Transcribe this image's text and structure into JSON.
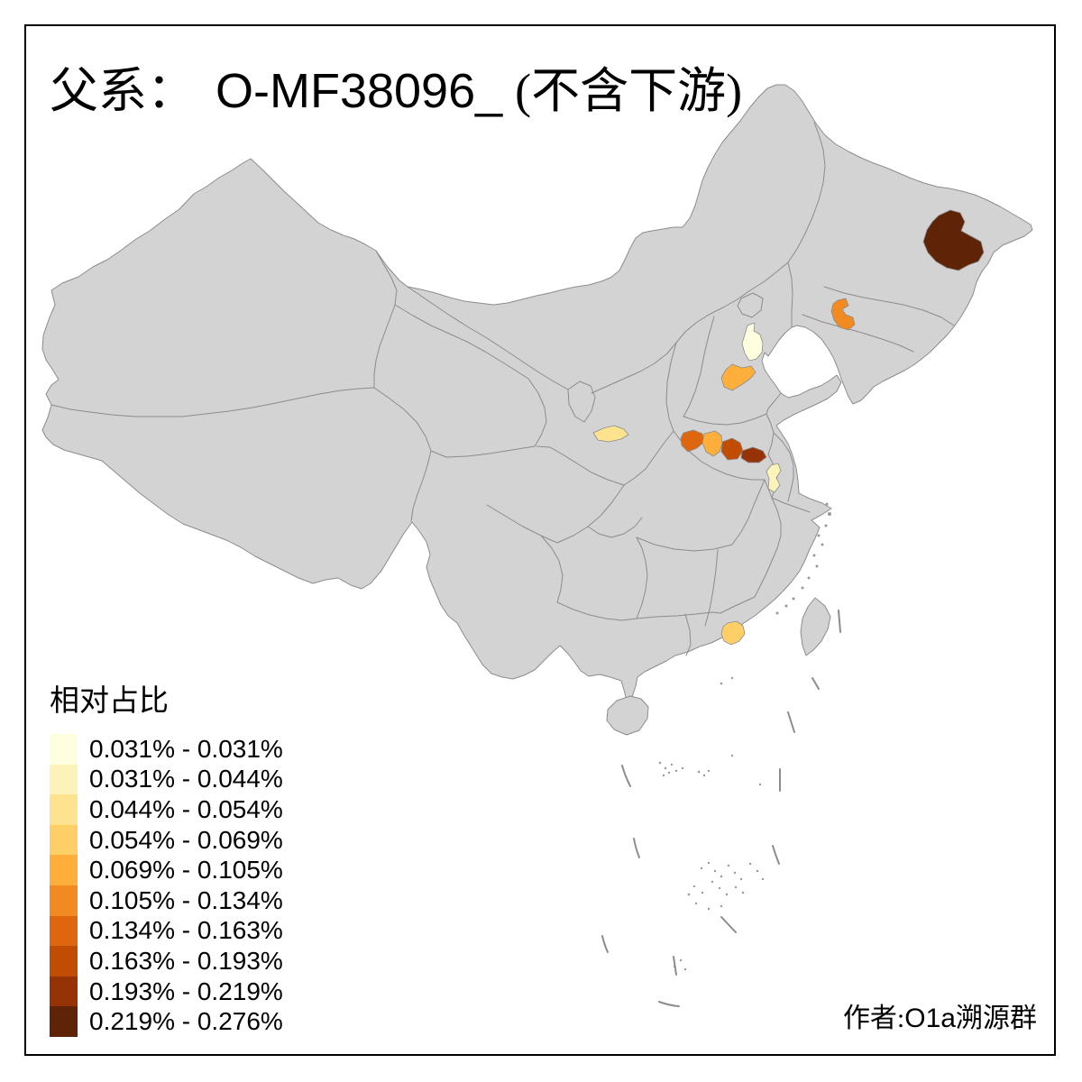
{
  "title": {
    "zh_prefix": "父系：",
    "code": "O-MF38096_",
    "zh_suffix": "(不含下游)"
  },
  "legend": {
    "title": "相对占比",
    "items": [
      {
        "label": "0.031% - 0.031%",
        "color": "#FFFFDF"
      },
      {
        "label": "0.031% - 0.044%",
        "color": "#FBF3B9"
      },
      {
        "label": "0.044% - 0.054%",
        "color": "#FDE390"
      },
      {
        "label": "0.054% - 0.069%",
        "color": "#FECF66"
      },
      {
        "label": "0.069% - 0.105%",
        "color": "#FDAE3B"
      },
      {
        "label": "0.105% - 0.134%",
        "color": "#F28A22"
      },
      {
        "label": "0.134% - 0.163%",
        "color": "#DD660F"
      },
      {
        "label": "0.163% - 0.193%",
        "color": "#C04D03"
      },
      {
        "label": "0.193% - 0.219%",
        "color": "#963306"
      },
      {
        "label": "0.219% - 0.276%",
        "color": "#5F2407"
      }
    ]
  },
  "attribution": {
    "zh_prefix": "作者:",
    "code": "O1a",
    "zh_suffix": "溯源群"
  },
  "map": {
    "background": "#FFFFFF",
    "base_fill": "#D3D3D3",
    "border_color": "#8C8C8C",
    "frame_color": "#000000",
    "regions": [
      {
        "id": "r-heilongjiang-east",
        "bin": 9
      },
      {
        "id": "r-liaoning",
        "bin": 5
      },
      {
        "id": "r-tianjin",
        "bin": 0
      },
      {
        "id": "r-hebei-south",
        "bin": 4
      },
      {
        "id": "r-shaanxi-central",
        "bin": 2
      },
      {
        "id": "r-henan-west",
        "bin": 6
      },
      {
        "id": "r-henan-center",
        "bin": 4
      },
      {
        "id": "r-henan-east1",
        "bin": 7
      },
      {
        "id": "r-henan-east2",
        "bin": 8
      },
      {
        "id": "r-anhui-northwest",
        "bin": 1
      },
      {
        "id": "r-guangdong-east",
        "bin": 3
      }
    ]
  }
}
